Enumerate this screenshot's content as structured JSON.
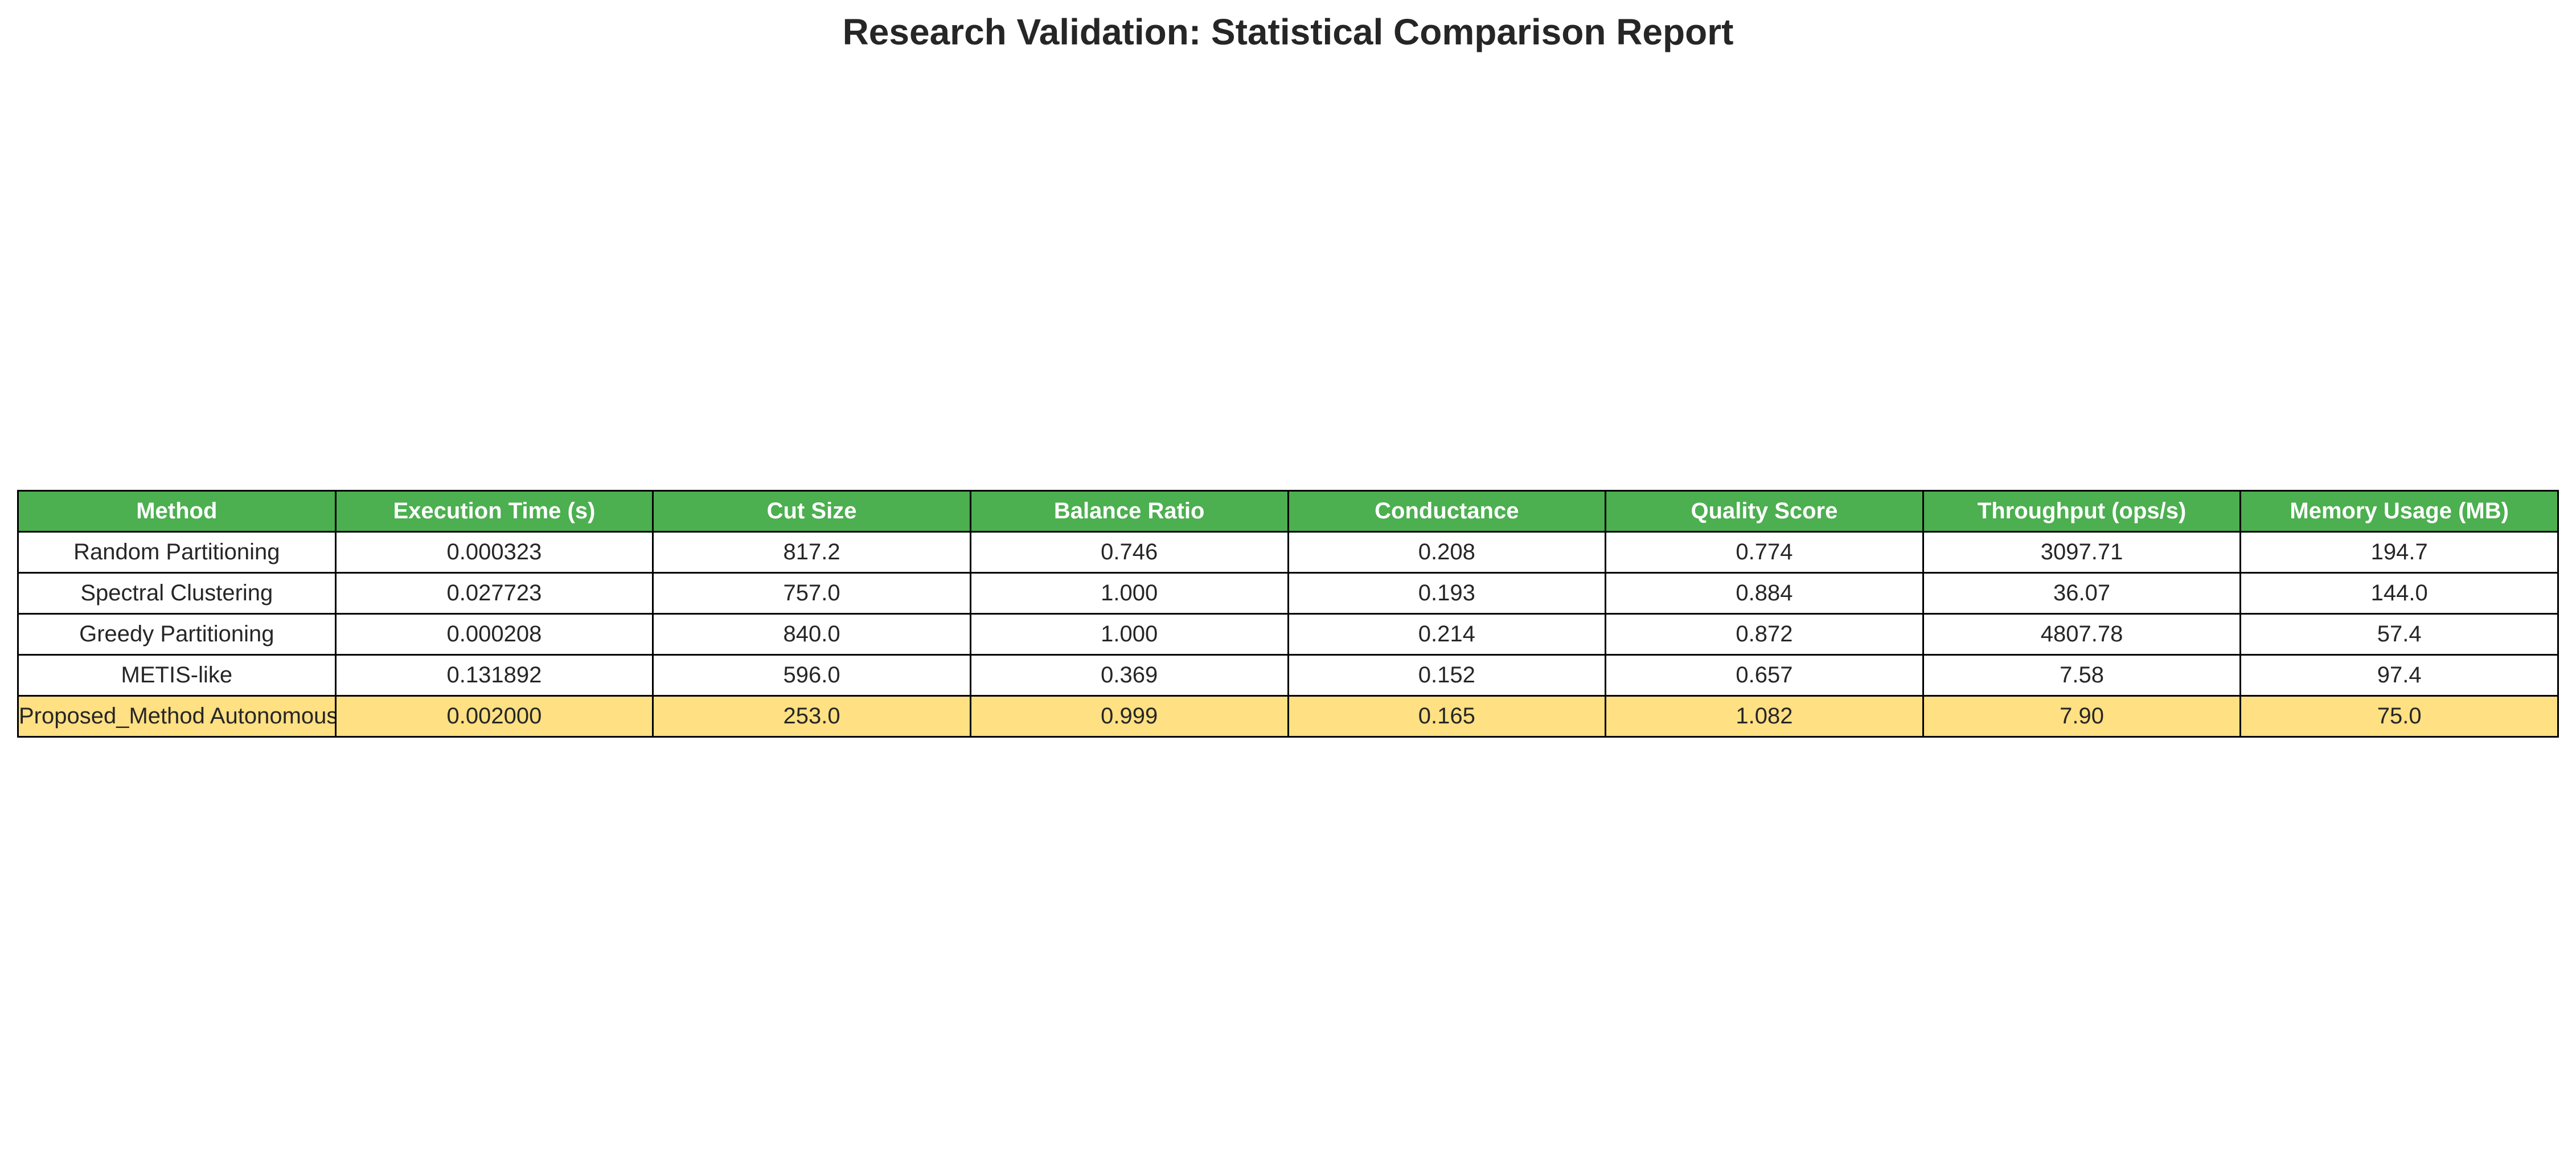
{
  "chart_data": {
    "type": "table",
    "title": "Research Validation: Statistical Comparison Report",
    "columns": [
      "Method",
      "Execution Time (s)",
      "Cut Size",
      "Balance Ratio",
      "Conductance",
      "Quality Score",
      "Throughput (ops/s)",
      "Memory Usage (MB)"
    ],
    "rows": [
      [
        "Random Partitioning",
        "0.000323",
        "817.2",
        "0.746",
        "0.208",
        "0.774",
        "3097.71",
        "194.7"
      ],
      [
        "Spectral Clustering",
        "0.027723",
        "757.0",
        "1.000",
        "0.193",
        "0.884",
        "36.07",
        "144.0"
      ],
      [
        "Greedy Partitioning",
        "0.000208",
        "840.0",
        "1.000",
        "0.214",
        "0.872",
        "4807.78",
        "57.4"
      ],
      [
        "METIS-like",
        "0.131892",
        "596.0",
        "0.369",
        "0.152",
        "0.657",
        "7.58",
        "97.4"
      ],
      [
        "Proposed_Method Autonomous Sy",
        "0.002000",
        "253.0",
        "0.999",
        "0.165",
        "1.082",
        "7.90",
        "75.0"
      ]
    ],
    "highlight_row": 4,
    "colors": {
      "header_background": "#4caf50",
      "header_text": "#ffffff",
      "highlight_background": "#ffe082",
      "cell_background": "#ffffff",
      "border": "#000000"
    }
  }
}
